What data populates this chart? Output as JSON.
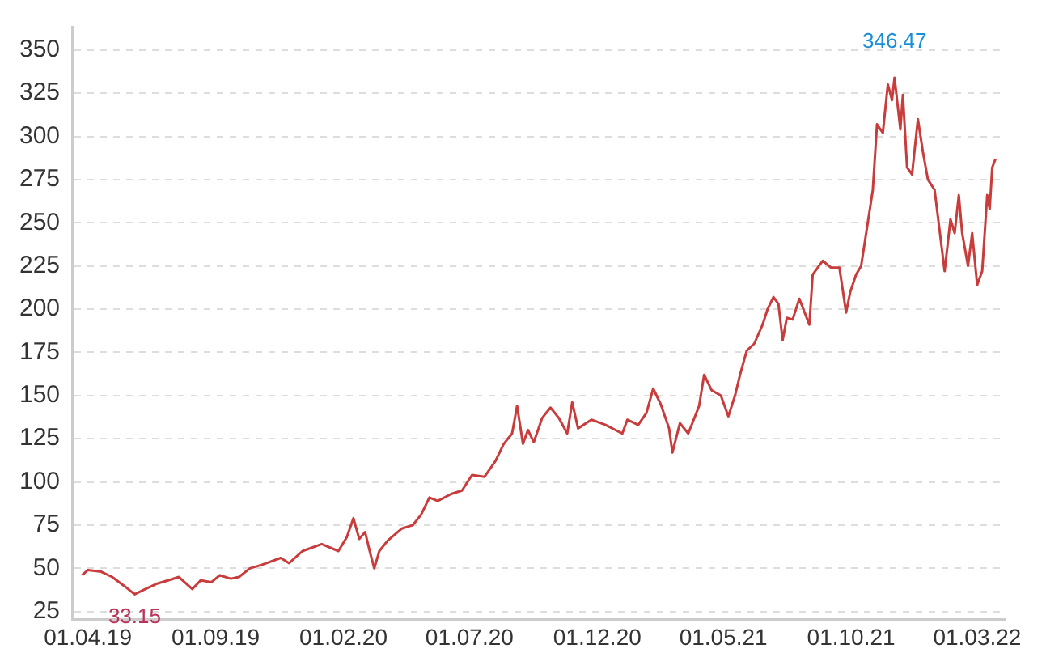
{
  "chart_data": {
    "type": "line",
    "x": [
      "2019-03-25",
      "2019-04-01",
      "2019-04-17",
      "2019-04-30",
      "2019-05-14",
      "2019-05-27",
      "2019-06-09",
      "2019-06-22",
      "2019-07-06",
      "2019-07-19",
      "2019-08-04",
      "2019-08-14",
      "2019-08-27",
      "2019-09-06",
      "2019-09-19",
      "2019-09-29",
      "2019-10-12",
      "2019-10-26",
      "2019-11-18",
      "2019-11-28",
      "2019-12-14",
      "2020-01-06",
      "2020-01-26",
      "2020-02-05",
      "2020-02-13",
      "2020-02-20",
      "2020-02-27",
      "2020-03-04",
      "2020-03-09",
      "2020-03-15",
      "2020-03-25",
      "2020-04-11",
      "2020-04-24",
      "2020-05-04",
      "2020-05-14",
      "2020-05-24",
      "2020-06-09",
      "2020-06-22",
      "2020-07-04",
      "2020-07-19",
      "2020-08-01",
      "2020-08-11",
      "2020-08-21",
      "2020-08-27",
      "2020-09-03",
      "2020-09-09",
      "2020-09-16",
      "2020-09-26",
      "2020-10-06",
      "2020-10-16",
      "2020-10-26",
      "2020-11-01",
      "2020-11-08",
      "2020-11-24",
      "2020-12-11",
      "2020-12-31",
      "2021-01-06",
      "2021-01-19",
      "2021-01-29",
      "2021-02-06",
      "2021-02-15",
      "2021-02-25",
      "2021-03-01",
      "2021-03-10",
      "2021-03-20",
      "2021-04-02",
      "2021-04-08",
      "2021-04-17",
      "2021-04-28",
      "2021-05-07",
      "2021-05-15",
      "2021-05-21",
      "2021-05-29",
      "2021-06-07",
      "2021-06-17",
      "2021-06-23",
      "2021-06-30",
      "2021-07-06",
      "2021-07-11",
      "2021-07-16",
      "2021-07-23",
      "2021-07-31",
      "2021-08-12",
      "2021-08-16",
      "2021-08-28",
      "2021-09-07",
      "2021-09-17",
      "2021-09-25",
      "2021-09-30",
      "2021-10-07",
      "2021-10-13",
      "2021-10-20",
      "2021-10-27",
      "2021-11-01",
      "2021-11-08",
      "2021-11-14",
      "2021-11-19",
      "2021-11-22",
      "2021-11-29",
      "2021-12-02",
      "2021-12-07",
      "2021-12-13",
      "2021-12-20",
      "2021-12-26",
      "2022-01-01",
      "2022-01-09",
      "2022-01-21",
      "2022-01-28",
      "2022-02-02",
      "2022-02-07",
      "2022-02-11",
      "2022-02-18",
      "2022-02-23",
      "2022-03-01",
      "2022-03-07",
      "2022-03-13",
      "2022-03-16",
      "2022-03-19",
      "2022-03-23"
    ],
    "series": [
      {
        "color": "#c83c3c",
        "values": [
          46,
          49,
          48,
          45,
          40,
          35,
          38,
          41,
          43,
          45,
          38,
          43,
          42,
          46,
          44,
          45,
          50,
          52,
          56,
          53,
          60,
          64,
          60,
          68,
          79,
          67,
          71,
          59,
          50,
          60,
          66,
          73,
          75,
          81,
          91,
          89,
          93,
          95,
          104,
          103,
          112,
          122,
          128,
          144,
          122,
          130,
          123,
          137,
          143,
          137,
          128,
          146,
          131,
          136,
          133,
          128,
          136,
          133,
          140,
          154,
          145,
          131,
          117,
          134,
          128,
          144,
          162,
          153,
          150,
          138,
          150,
          162,
          176,
          180,
          191,
          200,
          207,
          203,
          182,
          195,
          194,
          206,
          191,
          220,
          228,
          224,
          224,
          198,
          210,
          220,
          225,
          247,
          269,
          307,
          302,
          330,
          321,
          334,
          304,
          324,
          282,
          278,
          310,
          291,
          275,
          269,
          222,
          252,
          244,
          266,
          244,
          225,
          244,
          214,
          222,
          266,
          258,
          282,
          287
        ]
      }
    ],
    "xlim": [
      "2019-03-14",
      "2022-04-03"
    ],
    "xticks": [
      {
        "value": "2019-04-01",
        "label": "01.04.19"
      },
      {
        "value": "2019-09-01",
        "label": "01.09.19"
      },
      {
        "value": "2020-02-01",
        "label": "01.02.20"
      },
      {
        "value": "2020-07-01",
        "label": "01.07.20"
      },
      {
        "value": "2020-12-01",
        "label": "01.12.20"
      },
      {
        "value": "2021-05-01",
        "label": "01.05.21"
      },
      {
        "value": "2021-10-01",
        "label": "01.10.21"
      },
      {
        "value": "2022-03-01",
        "label": "01.03.22"
      }
    ],
    "ylim": [
      20,
      363
    ],
    "yticks": [
      25,
      50,
      75,
      100,
      125,
      150,
      175,
      200,
      225,
      250,
      275,
      300,
      325,
      350
    ],
    "grid": "y",
    "line_style": "solid",
    "annotations": [
      "346.47",
      "33.15"
    ]
  }
}
